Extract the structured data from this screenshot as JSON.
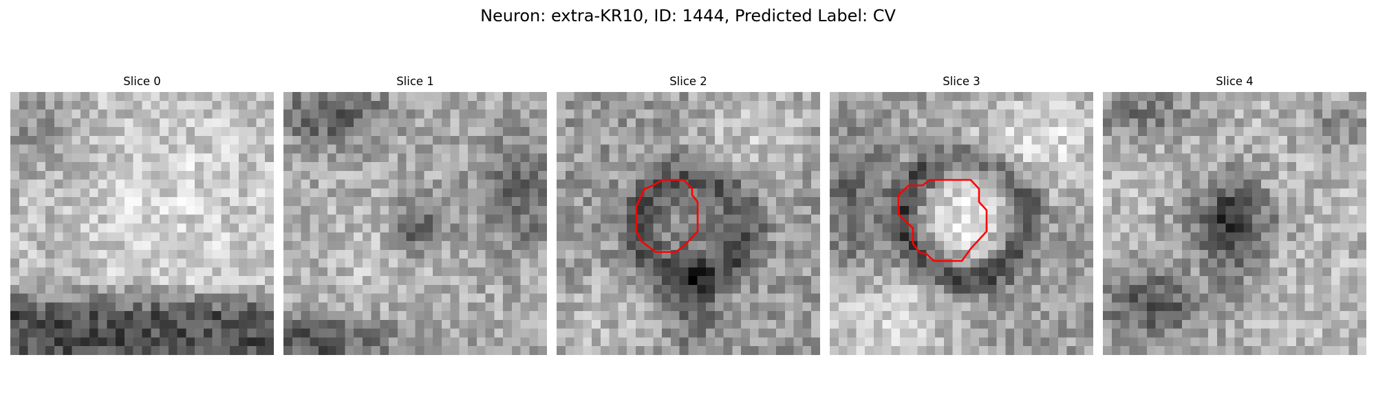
{
  "figure": {
    "title": "Neuron: extra-KR10, ID: 1444, Predicted Label: CV"
  },
  "panels": [
    {
      "title": "Slice 0",
      "has_contour": false
    },
    {
      "title": "Slice 1",
      "has_contour": false
    },
    {
      "title": "Slice 2",
      "has_contour": true
    },
    {
      "title": "Slice 3",
      "has_contour": true
    },
    {
      "title": "Slice 4",
      "has_contour": false
    }
  ],
  "colors": {
    "contour": "#ff0000",
    "colormap": "gray"
  }
}
